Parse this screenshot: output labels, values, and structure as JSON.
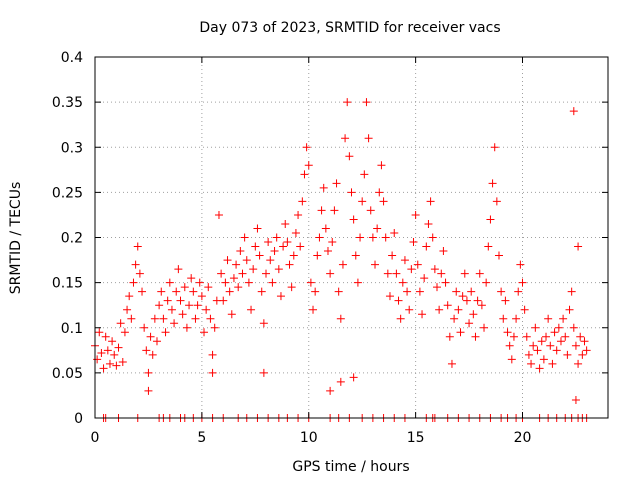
{
  "chart_data": {
    "type": "scatter",
    "title": "Day 073 of 2023, SRMTID for receiver vacs",
    "xlabel": "GPS time / hours",
    "ylabel": "SRMTID / TECUs",
    "xlim": [
      0,
      24
    ],
    "ylim": [
      0,
      0.4
    ],
    "x_ticks": [
      0,
      5,
      10,
      15,
      20
    ],
    "x_tick_labels": [
      "0",
      "5",
      "10",
      "15",
      "20"
    ],
    "y_ticks": [
      0,
      0.05,
      0.1,
      0.15,
      0.2,
      0.25,
      0.3,
      0.35,
      0.4
    ],
    "y_tick_labels": [
      "0",
      "0.05",
      "0.1",
      "0.15",
      "0.2",
      "0.25",
      "0.3",
      "0.35",
      "0.4"
    ],
    "grid": true,
    "marker": "+",
    "marker_color": "#ff0000",
    "series": [
      {
        "name": "SRMTID",
        "points": [
          [
            0.0,
            0.08
          ],
          [
            0.1,
            0.065
          ],
          [
            0.2,
            0.095
          ],
          [
            0.3,
            0.072
          ],
          [
            0.4,
            0.055
          ],
          [
            0.5,
            0.09
          ],
          [
            0.6,
            0.075
          ],
          [
            0.7,
            0.06
          ],
          [
            0.8,
            0.085
          ],
          [
            0.9,
            0.07
          ],
          [
            1.0,
            0.058
          ],
          [
            1.1,
            0.078
          ],
          [
            1.2,
            0.105
          ],
          [
            1.3,
            0.062
          ],
          [
            1.4,
            0.095
          ],
          [
            1.5,
            0.12
          ],
          [
            1.6,
            0.135
          ],
          [
            1.7,
            0.11
          ],
          [
            1.8,
            0.15
          ],
          [
            1.9,
            0.17
          ],
          [
            2.0,
            0.19
          ],
          [
            2.1,
            0.16
          ],
          [
            2.2,
            0.14
          ],
          [
            2.3,
            0.1
          ],
          [
            2.4,
            0.075
          ],
          [
            2.5,
            0.05
          ],
          [
            2.6,
            0.09
          ],
          [
            2.7,
            0.07
          ],
          [
            2.8,
            0.11
          ],
          [
            2.9,
            0.085
          ],
          [
            3.0,
            0.125
          ],
          [
            3.1,
            0.14
          ],
          [
            3.2,
            0.11
          ],
          [
            3.3,
            0.095
          ],
          [
            3.4,
            0.13
          ],
          [
            3.5,
            0.15
          ],
          [
            3.6,
            0.12
          ],
          [
            3.7,
            0.105
          ],
          [
            3.8,
            0.14
          ],
          [
            3.9,
            0.165
          ],
          [
            4.0,
            0.13
          ],
          [
            4.1,
            0.115
          ],
          [
            4.2,
            0.145
          ],
          [
            4.3,
            0.1
          ],
          [
            4.4,
            0.125
          ],
          [
            4.5,
            0.155
          ],
          [
            4.6,
            0.14
          ],
          [
            4.7,
            0.11
          ],
          [
            4.8,
            0.125
          ],
          [
            4.9,
            0.15
          ],
          [
            5.0,
            0.135
          ],
          [
            5.1,
            0.095
          ],
          [
            5.2,
            0.12
          ],
          [
            5.3,
            0.145
          ],
          [
            5.4,
            0.11
          ],
          [
            5.5,
            0.07
          ],
          [
            5.6,
            0.1
          ],
          [
            5.7,
            0.13
          ],
          [
            5.8,
            0.225
          ],
          [
            5.9,
            0.16
          ],
          [
            6.0,
            0.13
          ],
          [
            6.1,
            0.15
          ],
          [
            6.2,
            0.175
          ],
          [
            6.3,
            0.14
          ],
          [
            6.4,
            0.115
          ],
          [
            6.5,
            0.155
          ],
          [
            6.6,
            0.17
          ],
          [
            6.7,
            0.145
          ],
          [
            6.8,
            0.185
          ],
          [
            6.9,
            0.16
          ],
          [
            7.0,
            0.2
          ],
          [
            7.1,
            0.175
          ],
          [
            7.2,
            0.15
          ],
          [
            7.3,
            0.12
          ],
          [
            7.4,
            0.165
          ],
          [
            7.5,
            0.19
          ],
          [
            7.6,
            0.21
          ],
          [
            7.7,
            0.18
          ],
          [
            7.8,
            0.14
          ],
          [
            7.9,
            0.105
          ],
          [
            8.0,
            0.16
          ],
          [
            8.1,
            0.195
          ],
          [
            8.2,
            0.175
          ],
          [
            8.3,
            0.15
          ],
          [
            8.4,
            0.185
          ],
          [
            8.5,
            0.2
          ],
          [
            8.6,
            0.165
          ],
          [
            8.7,
            0.135
          ],
          [
            8.8,
            0.19
          ],
          [
            8.9,
            0.215
          ],
          [
            9.0,
            0.195
          ],
          [
            9.1,
            0.17
          ],
          [
            9.2,
            0.145
          ],
          [
            9.3,
            0.18
          ],
          [
            9.4,
            0.205
          ],
          [
            9.5,
            0.225
          ],
          [
            9.6,
            0.19
          ],
          [
            9.7,
            0.24
          ],
          [
            9.8,
            0.27
          ],
          [
            9.9,
            0.3
          ],
          [
            10.0,
            0.28
          ],
          [
            10.1,
            0.15
          ],
          [
            10.2,
            0.12
          ],
          [
            10.3,
            0.14
          ],
          [
            10.4,
            0.18
          ],
          [
            10.5,
            0.2
          ],
          [
            10.6,
            0.23
          ],
          [
            10.7,
            0.255
          ],
          [
            10.8,
            0.21
          ],
          [
            10.9,
            0.185
          ],
          [
            11.0,
            0.16
          ],
          [
            11.1,
            0.195
          ],
          [
            11.2,
            0.23
          ],
          [
            11.3,
            0.26
          ],
          [
            11.4,
            0.14
          ],
          [
            11.5,
            0.11
          ],
          [
            11.6,
            0.17
          ],
          [
            11.7,
            0.31
          ],
          [
            11.8,
            0.35
          ],
          [
            11.9,
            0.29
          ],
          [
            12.0,
            0.25
          ],
          [
            12.1,
            0.22
          ],
          [
            12.2,
            0.18
          ],
          [
            12.3,
            0.15
          ],
          [
            12.4,
            0.2
          ],
          [
            12.5,
            0.24
          ],
          [
            12.6,
            0.27
          ],
          [
            12.7,
            0.35
          ],
          [
            12.8,
            0.31
          ],
          [
            12.9,
            0.23
          ],
          [
            13.0,
            0.2
          ],
          [
            13.1,
            0.17
          ],
          [
            13.2,
            0.21
          ],
          [
            13.3,
            0.25
          ],
          [
            13.4,
            0.28
          ],
          [
            13.5,
            0.24
          ],
          [
            13.6,
            0.2
          ],
          [
            13.7,
            0.16
          ],
          [
            13.8,
            0.135
          ],
          [
            13.9,
            0.18
          ],
          [
            14.0,
            0.205
          ],
          [
            14.1,
            0.16
          ],
          [
            14.2,
            0.13
          ],
          [
            14.3,
            0.11
          ],
          [
            14.4,
            0.15
          ],
          [
            14.5,
            0.175
          ],
          [
            14.6,
            0.14
          ],
          [
            14.7,
            0.12
          ],
          [
            14.8,
            0.165
          ],
          [
            14.9,
            0.195
          ],
          [
            15.0,
            0.225
          ],
          [
            15.1,
            0.17
          ],
          [
            15.2,
            0.14
          ],
          [
            15.3,
            0.115
          ],
          [
            15.4,
            0.155
          ],
          [
            15.5,
            0.19
          ],
          [
            15.6,
            0.215
          ],
          [
            15.7,
            0.24
          ],
          [
            15.8,
            0.2
          ],
          [
            15.9,
            0.165
          ],
          [
            16.0,
            0.145
          ],
          [
            16.1,
            0.12
          ],
          [
            16.2,
            0.16
          ],
          [
            16.3,
            0.185
          ],
          [
            16.4,
            0.15
          ],
          [
            16.5,
            0.125
          ],
          [
            16.6,
            0.09
          ],
          [
            16.7,
            0.06
          ],
          [
            16.8,
            0.11
          ],
          [
            16.9,
            0.14
          ],
          [
            17.0,
            0.12
          ],
          [
            17.1,
            0.095
          ],
          [
            17.2,
            0.135
          ],
          [
            17.3,
            0.16
          ],
          [
            17.4,
            0.13
          ],
          [
            17.5,
            0.105
          ],
          [
            17.6,
            0.14
          ],
          [
            17.7,
            0.115
          ],
          [
            17.8,
            0.09
          ],
          [
            17.9,
            0.13
          ],
          [
            18.0,
            0.16
          ],
          [
            18.1,
            0.125
          ],
          [
            18.2,
            0.1
          ],
          [
            18.3,
            0.15
          ],
          [
            18.4,
            0.19
          ],
          [
            18.5,
            0.22
          ],
          [
            18.6,
            0.26
          ],
          [
            18.7,
            0.3
          ],
          [
            18.8,
            0.24
          ],
          [
            18.9,
            0.18
          ],
          [
            19.0,
            0.14
          ],
          [
            19.1,
            0.11
          ],
          [
            19.2,
            0.13
          ],
          [
            19.3,
            0.095
          ],
          [
            19.4,
            0.08
          ],
          [
            19.5,
            0.065
          ],
          [
            19.6,
            0.09
          ],
          [
            19.7,
            0.11
          ],
          [
            19.8,
            0.14
          ],
          [
            19.9,
            0.17
          ],
          [
            20.0,
            0.15
          ],
          [
            20.1,
            0.12
          ],
          [
            20.2,
            0.09
          ],
          [
            20.3,
            0.07
          ],
          [
            20.4,
            0.06
          ],
          [
            20.5,
            0.08
          ],
          [
            20.6,
            0.1
          ],
          [
            20.7,
            0.075
          ],
          [
            20.8,
            0.055
          ],
          [
            20.9,
            0.085
          ],
          [
            21.0,
            0.065
          ],
          [
            21.1,
            0.09
          ],
          [
            21.2,
            0.11
          ],
          [
            21.3,
            0.08
          ],
          [
            21.4,
            0.06
          ],
          [
            21.5,
            0.095
          ],
          [
            21.6,
            0.075
          ],
          [
            21.7,
            0.1
          ],
          [
            21.8,
            0.085
          ],
          [
            21.9,
            0.11
          ],
          [
            22.0,
            0.09
          ],
          [
            22.1,
            0.07
          ],
          [
            22.2,
            0.12
          ],
          [
            22.3,
            0.14
          ],
          [
            22.4,
            0.1
          ],
          [
            22.5,
            0.08
          ],
          [
            22.6,
            0.06
          ],
          [
            22.7,
            0.09
          ],
          [
            22.8,
            0.07
          ],
          [
            22.9,
            0.085
          ],
          [
            23.0,
            0.075
          ],
          [
            22.4,
            0.34
          ],
          [
            22.6,
            0.19
          ],
          [
            11.5,
            0.04
          ],
          [
            11.0,
            0.03
          ],
          [
            12.1,
            0.045
          ],
          [
            2.5,
            0.03
          ],
          [
            22.5,
            0.02
          ],
          [
            5.5,
            0.05
          ],
          [
            7.9,
            0.05
          ],
          [
            0.4,
            0.0
          ],
          [
            0.5,
            0.0
          ],
          [
            1.1,
            0.0
          ],
          [
            2.0,
            0.0
          ],
          [
            3.0,
            0.0
          ],
          [
            3.2,
            0.0
          ],
          [
            3.5,
            0.0
          ],
          [
            4.0,
            0.0
          ],
          [
            4.2,
            0.0
          ],
          [
            4.6,
            0.0
          ],
          [
            5.0,
            0.0
          ],
          [
            5.5,
            0.0
          ],
          [
            6.0,
            0.0
          ],
          [
            6.7,
            0.0
          ],
          [
            7.1,
            0.0
          ],
          [
            7.6,
            0.0
          ],
          [
            8.1,
            0.0
          ],
          [
            8.6,
            0.0
          ],
          [
            9.0,
            0.0
          ],
          [
            9.5,
            0.0
          ],
          [
            10.0,
            0.0
          ],
          [
            11.0,
            0.0
          ],
          [
            11.4,
            0.0
          ],
          [
            11.9,
            0.0
          ],
          [
            12.5,
            0.0
          ],
          [
            13.0,
            0.0
          ],
          [
            13.5,
            0.0
          ],
          [
            14.0,
            0.0
          ],
          [
            14.5,
            0.0
          ],
          [
            15.5,
            0.0
          ],
          [
            15.8,
            0.0
          ],
          [
            15.9,
            0.0
          ],
          [
            16.5,
            0.0
          ],
          [
            17.0,
            0.0
          ],
          [
            17.5,
            0.0
          ],
          [
            18.0,
            0.0
          ],
          [
            18.5,
            0.0
          ],
          [
            19.0,
            0.0
          ],
          [
            19.3,
            0.0
          ],
          [
            19.7,
            0.0
          ],
          [
            20.0,
            0.0
          ],
          [
            20.8,
            0.0
          ],
          [
            21.2,
            0.0
          ],
          [
            21.6,
            0.0
          ],
          [
            22.0,
            0.0
          ],
          [
            22.3,
            0.0
          ],
          [
            22.6,
            0.0
          ],
          [
            22.8,
            0.0
          ],
          [
            23.0,
            0.0
          ]
        ]
      }
    ]
  }
}
